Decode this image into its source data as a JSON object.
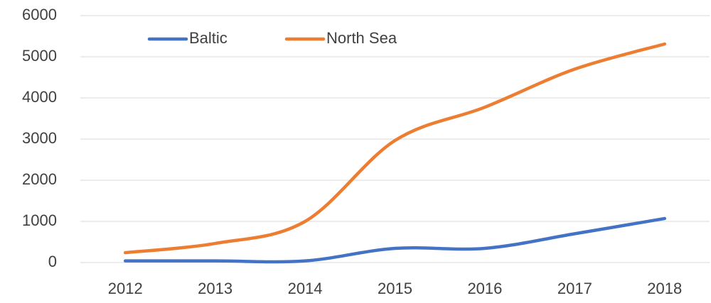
{
  "chart_data": {
    "type": "line",
    "categories": [
      "2012",
      "2013",
      "2014",
      "2015",
      "2016",
      "2017",
      "2018"
    ],
    "series": [
      {
        "name": "Baltic",
        "color": "#4472c4",
        "values": [
          40,
          40,
          40,
          345,
          345,
          700,
          1070
        ]
      },
      {
        "name": "North Sea",
        "color": "#ed7d31",
        "values": [
          240,
          465,
          1000,
          2965,
          3775,
          4700,
          5310
        ]
      }
    ],
    "ylim": [
      0,
      6000
    ],
    "yticks": [
      0,
      1000,
      2000,
      3000,
      4000,
      5000,
      6000
    ],
    "grid": true,
    "legend": "upper left",
    "smooth": true
  }
}
